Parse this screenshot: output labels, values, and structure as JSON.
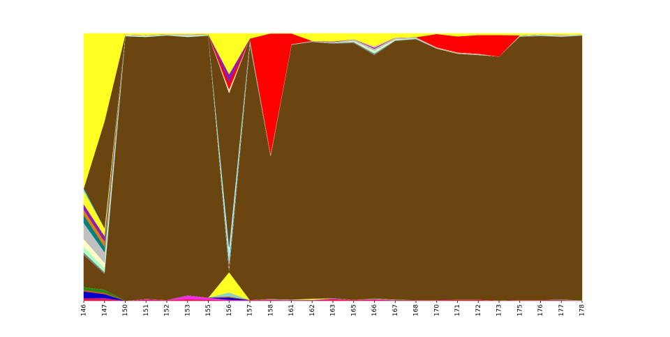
{
  "chart_data": {
    "type": "area",
    "stacked": true,
    "normalized": true,
    "x": [
      "146",
      "147",
      "150",
      "151",
      "152",
      "153",
      "155",
      "156",
      "157",
      "158",
      "161",
      "162",
      "163",
      "165",
      "166",
      "167",
      "168",
      "170",
      "171",
      "172",
      "173",
      "175",
      "176",
      "177",
      "178"
    ],
    "ylim": [
      0,
      1
    ],
    "grid": false,
    "legend": "none",
    "series": [
      {
        "color": "#e6194b",
        "values": [
          0.01,
          0.008,
          0.0,
          0.004,
          0.002,
          0.006,
          0.004,
          0.002,
          0.002,
          0.003,
          0.002,
          0.002,
          0.006,
          0.003,
          0.004,
          0.002,
          0.002,
          0.002,
          0.003,
          0.003,
          0.001,
          0.002,
          0.002,
          0.002,
          0.001
        ]
      },
      {
        "color": "#f032e6",
        "values": [
          0.0,
          0.002,
          0.0,
          0.002,
          0.001,
          0.014,
          0.008,
          0.002,
          0.001,
          0.002,
          0.001,
          0.001,
          0.003,
          0.001,
          0.003,
          0.001,
          0.001,
          0.001,
          0.001,
          0.001,
          0.0,
          0.001,
          0.001,
          0.001,
          0.0
        ]
      },
      {
        "color": "#0000cc",
        "values": [
          0.025,
          0.015,
          0.0,
          0.001,
          0.0,
          0.001,
          0.0,
          0.008,
          0.0,
          0.0,
          0.0,
          0.0,
          0.0,
          0.0,
          0.0,
          0.0,
          0.0,
          0.0,
          0.0,
          0.0,
          0.0,
          0.0,
          0.0,
          0.0,
          0.0
        ]
      },
      {
        "color": "#c85a19",
        "values": [
          0.006,
          0.006,
          0.0,
          0.0,
          0.0,
          0.0,
          0.0,
          0.004,
          0.0,
          0.0,
          0.0,
          0.0,
          0.0,
          0.0,
          0.0,
          0.0,
          0.0,
          0.0,
          0.0,
          0.0,
          0.0,
          0.0,
          0.0,
          0.0,
          0.0
        ]
      },
      {
        "color": "#1a8a1a",
        "values": [
          0.01,
          0.01,
          0.0,
          0.0,
          0.0,
          0.0,
          0.0,
          0.0,
          0.0,
          0.0,
          0.0,
          0.0,
          0.0,
          0.0,
          0.0,
          0.0,
          0.0,
          0.0,
          0.0,
          0.0,
          0.0,
          0.0,
          0.0,
          0.0,
          0.0
        ]
      },
      {
        "color": "#8fd0c4",
        "values": [
          0.0,
          0.0,
          0.0,
          0.0,
          0.0,
          0.0,
          0.0,
          0.015,
          0.0,
          0.002,
          0.002,
          0.001,
          0.001,
          0.0,
          0.002,
          0.002,
          0.0,
          0.0,
          0.0,
          0.0,
          0.0,
          0.0,
          0.0,
          0.002,
          0.001
        ]
      },
      {
        "color": "#ffff22",
        "values": [
          0.0,
          0.0,
          0.0,
          0.0,
          0.0,
          0.0,
          0.0,
          0.075,
          0.0,
          0.0,
          0.0,
          0.004,
          0.0,
          0.0,
          0.0,
          0.0,
          0.0,
          0.0,
          0.0,
          0.0,
          0.0,
          0.0,
          0.0,
          0.0,
          0.0
        ]
      },
      {
        "color": "#6b4510",
        "values": [
          0.12,
          0.06,
          0.99,
          0.98,
          0.99,
          0.966,
          0.98,
          0.004,
          0.955,
          0.535,
          0.955,
          0.96,
          0.952,
          0.96,
          0.91,
          0.965,
          0.975,
          0.94,
          0.92,
          0.915,
          0.913,
          0.985,
          0.985,
          0.98,
          0.99
        ]
      },
      {
        "color": "#808080",
        "values": [
          0.01,
          0.006,
          0.0,
          0.0,
          0.0,
          0.0,
          0.0,
          0.01,
          0.01,
          0.0,
          0.0,
          0.002,
          0.002,
          0.004,
          0.006,
          0.002,
          0.002,
          0.001,
          0.001,
          0.001,
          0.0,
          0.001,
          0.002,
          0.002,
          0.001
        ]
      },
      {
        "color": "#aaffc3",
        "values": [
          0.02,
          0.015,
          0.002,
          0.002,
          0.002,
          0.002,
          0.002,
          0.0,
          0.0,
          0.0,
          0.0,
          0.0,
          0.0,
          0.002,
          0.006,
          0.002,
          0.002,
          0.0,
          0.0,
          0.0,
          0.0,
          0.002,
          0.002,
          0.002,
          0.002
        ]
      },
      {
        "color": "#fffac8",
        "values": [
          0.03,
          0.02,
          0.002,
          0.002,
          0.0,
          0.002,
          0.0,
          0.0,
          0.0,
          0.0,
          0.0,
          0.0,
          0.0,
          0.002,
          0.004,
          0.002,
          0.0,
          0.0,
          0.0,
          0.0,
          0.0,
          0.0,
          0.0,
          0.002,
          0.0
        ]
      },
      {
        "color": "#c0c0c0",
        "values": [
          0.06,
          0.04,
          0.002,
          0.003,
          0.002,
          0.006,
          0.002,
          0.006,
          0.01,
          0.0,
          0.002,
          0.002,
          0.004,
          0.006,
          0.008,
          0.006,
          0.004,
          0.002,
          0.002,
          0.002,
          0.0,
          0.002,
          0.002,
          0.002,
          0.001
        ]
      },
      {
        "color": "#008080",
        "values": [
          0.03,
          0.02,
          0.0,
          0.0,
          0.0,
          0.0,
          0.0,
          0.0,
          0.0,
          0.0,
          0.0,
          0.0,
          0.0,
          0.0,
          0.0,
          0.0,
          0.0,
          0.0,
          0.0,
          0.0,
          0.0,
          0.0,
          0.0,
          0.0,
          0.0
        ]
      },
      {
        "color": "#e08010",
        "values": [
          0.02,
          0.02,
          0.0,
          0.0,
          0.0,
          0.0,
          0.0,
          0.003,
          0.003,
          0.003,
          0.0,
          0.0,
          0.0,
          0.0,
          0.0,
          0.0,
          0.0,
          0.0,
          0.0,
          0.0,
          0.0,
          0.0,
          0.0,
          0.0,
          0.0
        ]
      },
      {
        "color": "#911eb4",
        "values": [
          0.02,
          0.02,
          0.0,
          0.0,
          0.0,
          0.0,
          0.0,
          0.01,
          0.0,
          0.0,
          0.0,
          0.0,
          0.002,
          0.0,
          0.004,
          0.0,
          0.0,
          0.0,
          0.0,
          0.0,
          0.0,
          0.0,
          0.0,
          0.0,
          0.0
        ]
      },
      {
        "color": "#ffff22",
        "values": [
          0.05,
          0.03,
          0.0,
          0.0,
          0.0,
          0.0,
          0.0,
          0.0,
          0.0,
          0.0,
          0.0,
          0.0,
          0.0,
          0.0,
          0.0,
          0.0,
          0.0,
          0.0,
          0.0,
          0.0,
          0.0,
          0.0,
          0.0,
          0.0,
          0.0
        ]
      },
      {
        "color": "#42d4f4",
        "values": [
          0.01,
          0.0,
          0.0,
          0.0,
          0.0,
          0.0,
          0.0,
          0.0,
          0.0,
          0.0,
          0.0,
          0.0,
          0.0,
          0.0,
          0.0,
          0.0,
          0.0,
          0.0,
          0.0,
          0.0,
          0.0,
          0.0,
          0.0,
          0.0,
          0.0
        ]
      },
      {
        "color": "#6b4510",
        "values": [
          0.0,
          0.4,
          0.0,
          0.0,
          0.0,
          0.0,
          0.0,
          0.0,
          0.0,
          0.0,
          0.0,
          0.0,
          0.0,
          0.0,
          0.0,
          0.0,
          0.0,
          0.0,
          0.0,
          0.0,
          0.0,
          0.0,
          0.0,
          0.0,
          0.0
        ]
      },
      {
        "color": "#a9f2f2",
        "values": [
          0.0,
          0.0,
          0.0,
          0.0,
          0.0,
          0.0,
          0.0,
          0.06,
          0.0,
          0.0,
          0.0,
          0.0,
          0.0,
          0.0,
          0.0,
          0.0,
          0.0,
          0.0,
          0.0,
          0.0,
          0.0,
          0.0,
          0.0,
          0.0,
          0.0
        ]
      },
      {
        "color": "#6b4510",
        "values": [
          0.0,
          0.0,
          0.0,
          0.0,
          0.0,
          0.0,
          0.0,
          0.57,
          0.0,
          0.0,
          0.0,
          0.0,
          0.0,
          0.0,
          0.0,
          0.0,
          0.0,
          0.0,
          0.0,
          0.0,
          0.0,
          0.0,
          0.0,
          0.0,
          0.0
        ]
      },
      {
        "color": "#ffd8b1",
        "values": [
          0.0,
          0.0,
          0.0,
          0.0,
          0.0,
          0.0,
          0.0,
          0.015,
          0.0,
          0.005,
          0.0,
          0.0,
          0.0,
          0.0,
          0.005,
          0.0,
          0.0,
          0.002,
          0.002,
          0.002,
          0.0,
          0.0,
          0.0,
          0.0,
          0.0
        ]
      },
      {
        "color": "#ff0000",
        "values": [
          0.0,
          0.0,
          0.0,
          0.0,
          0.0,
          0.0,
          0.0,
          0.025,
          0.0,
          0.45,
          0.04,
          0.0,
          0.0,
          0.0,
          0.0,
          0.0,
          0.0,
          0.05,
          0.06,
          0.07,
          0.08,
          0.0,
          0.0,
          0.0,
          0.0
        ]
      },
      {
        "color": "#911eb4",
        "values": [
          0.0,
          0.0,
          0.0,
          0.0,
          0.0,
          0.0,
          0.0,
          0.03,
          0.0,
          0.0,
          0.0,
          0.0,
          0.0,
          0.0,
          0.0,
          0.0,
          0.0,
          0.0,
          0.0,
          0.0,
          0.0,
          0.0,
          0.0,
          0.0,
          0.0
        ]
      },
      {
        "color": "#ffff22",
        "values": [
          0.579,
          0.328,
          0.004,
          0.006,
          0.003,
          0.003,
          0.004,
          0.151,
          0.019,
          0.0,
          0.0,
          0.028,
          0.03,
          0.022,
          0.048,
          0.016,
          0.014,
          0.002,
          0.011,
          0.006,
          0.006,
          0.007,
          0.004,
          0.005,
          0.004
        ]
      }
    ]
  }
}
